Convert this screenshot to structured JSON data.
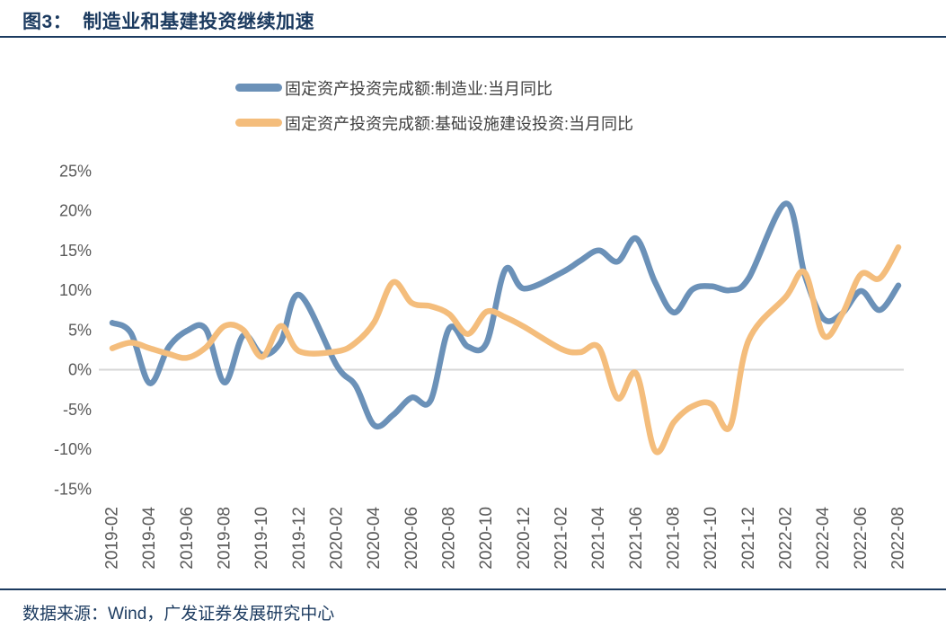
{
  "figure": {
    "label": "图3：",
    "title": "制造业和基建投资继续加速"
  },
  "source": {
    "text": "数据来源：Wind，广发证券发展研究中心"
  },
  "colors": {
    "accent_navy": "#1b3a5f",
    "series_manufacturing": "#6b91b8",
    "series_infrastructure": "#f4bd7c",
    "axis_text": "#595959",
    "zero_line": "#d6d6d6",
    "legend_text": "#3f3f3f"
  },
  "chart_data": {
    "type": "line",
    "smooth": true,
    "grid": "zero-line-only",
    "legend_position": "top-center",
    "ylim": [
      -15,
      25
    ],
    "ytick_values": [
      25,
      20,
      15,
      10,
      5,
      0,
      -5,
      -10,
      -15
    ],
    "ytick_labels": [
      "25%",
      "20%",
      "15%",
      "10%",
      "5%",
      "0%",
      "-5%",
      "-10%",
      "-15%"
    ],
    "x_months": [
      "2019-02",
      "2019-03",
      "2019-04",
      "2019-05",
      "2019-06",
      "2019-07",
      "2019-08",
      "2019-09",
      "2019-10",
      "2019-11",
      "2019-12",
      "2020-01",
      "2020-02",
      "2020-03",
      "2020-04",
      "2020-05",
      "2020-06",
      "2020-07",
      "2020-08",
      "2020-09",
      "2020-10",
      "2020-11",
      "2020-12",
      "2021-01",
      "2021-02",
      "2021-03",
      "2021-04",
      "2021-05",
      "2021-06",
      "2021-07",
      "2021-08",
      "2021-09",
      "2021-10",
      "2021-11",
      "2021-12",
      "2022-01",
      "2022-02",
      "2022-03",
      "2022-04",
      "2022-05",
      "2022-06",
      "2022-07",
      "2022-08"
    ],
    "xtick_labels": [
      "2019-02",
      "2019-04",
      "2019-06",
      "2019-08",
      "2019-10",
      "2019-12",
      "2020-02",
      "2020-04",
      "2020-06",
      "2020-08",
      "2020-10",
      "2020-12",
      "2021-02",
      "2021-04",
      "2021-06",
      "2021-08",
      "2021-10",
      "2021-12",
      "2022-02",
      "2022-04",
      "2022-06",
      "2022-08"
    ],
    "unit": "%",
    "series": [
      {
        "name": "固定资产投资完成额:制造业:当月同比",
        "color_key": "series_manufacturing",
        "values": [
          5.9,
          4.6,
          -1.7,
          2.8,
          4.9,
          5.1,
          -1.6,
          4.3,
          1.9,
          3.5,
          9.4,
          null,
          0.5,
          -2.0,
          -7.0,
          -5.7,
          -3.5,
          -3.9,
          5.2,
          2.9,
          3.4,
          12.6,
          10.2,
          null,
          12.2,
          13.7,
          15.0,
          13.6,
          16.5,
          11.0,
          7.2,
          10.1,
          10.5,
          10.0,
          11.5,
          null,
          20.9,
          11.9,
          6.4,
          7.1,
          9.9,
          7.5,
          10.6
        ]
      },
      {
        "name": "固定资产投资完成额:基础设施建设投资:当月同比",
        "color_key": "series_infrastructure",
        "values": [
          2.7,
          3.4,
          2.7,
          2.0,
          1.5,
          2.8,
          5.5,
          5.0,
          1.6,
          5.5,
          2.3,
          null,
          2.3,
          3.4,
          6.0,
          11.0,
          8.4,
          8.0,
          7.0,
          4.5,
          7.3,
          6.6,
          5.4,
          null,
          2.6,
          2.2,
          2.8,
          -3.6,
          -0.5,
          -10.2,
          -6.6,
          -4.6,
          -4.3,
          -7.2,
          3.7,
          null,
          9.2,
          12.2,
          4.3,
          7.0,
          12.0,
          11.5,
          15.4
        ]
      }
    ]
  }
}
